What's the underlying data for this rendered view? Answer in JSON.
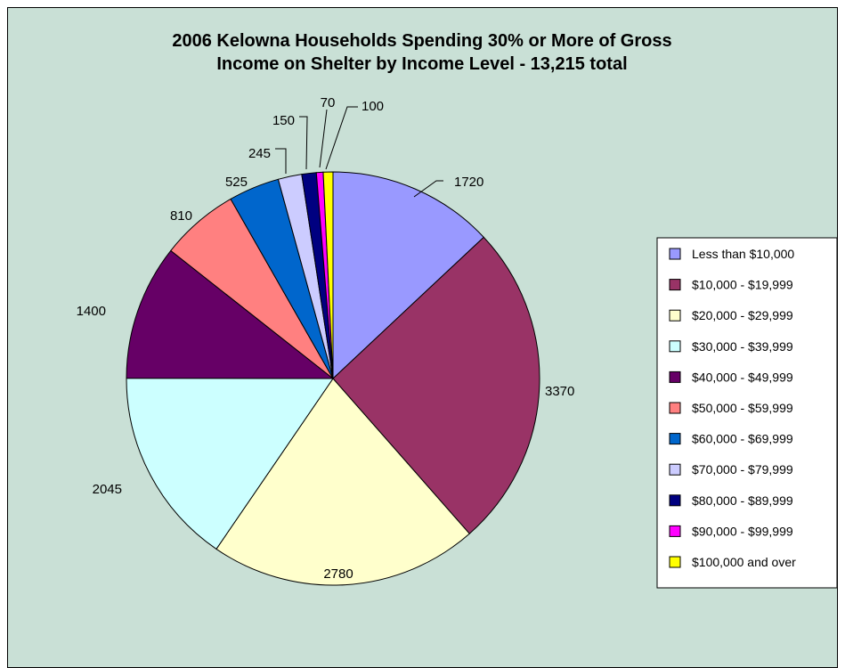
{
  "chart_data": {
    "type": "pie",
    "title_line1": "2006 Kelowna Households Spending 30% or More of Gross",
    "title_line2": "Income on Shelter by Income Level - 13,215 total",
    "legend_position": "right",
    "categories": [
      "Less than $10,000",
      "$10,000 - $19,999",
      "$20,000 - $29,999",
      "$30,000 - $39,999",
      "$40,000 - $49,999",
      "$50,000 - $59,999",
      "$60,000 - $69,999",
      "$70,000 - $79,999",
      "$80,000 - $89,999",
      "$90,000 - $99,999",
      "$100,000 and over"
    ],
    "values": [
      1720,
      3370,
      2780,
      2045,
      1400,
      810,
      525,
      245,
      150,
      70,
      100
    ],
    "value_labels": [
      "1720",
      "3370",
      "2780",
      "2045",
      "1400",
      "810",
      "525",
      "245",
      "150",
      "70",
      "100"
    ],
    "colors": [
      "#9999ff",
      "#993366",
      "#ffffcc",
      "#ccffff",
      "#660066",
      "#ff8080",
      "#0066cc",
      "#ccccff",
      "#000080",
      "#ff00ff",
      "#ffff00"
    ]
  }
}
